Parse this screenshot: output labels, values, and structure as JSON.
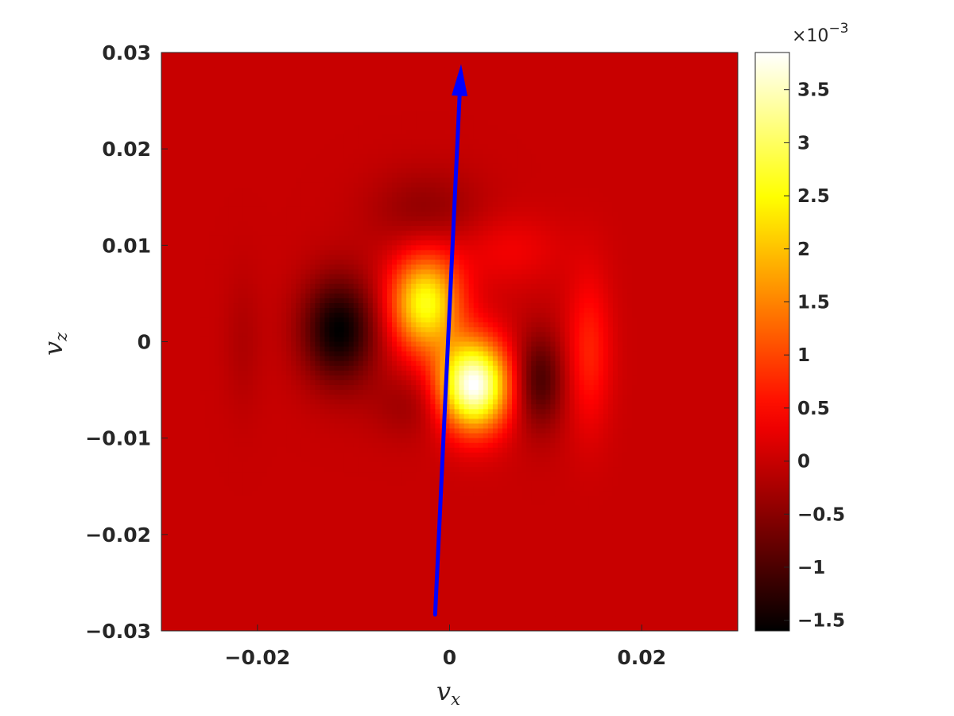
{
  "chart_data": {
    "type": "heatmap",
    "title": "",
    "xlabel": {
      "base": "v",
      "sub": "x"
    },
    "ylabel": {
      "base": "v",
      "sub": "z"
    },
    "xlim": [
      -0.03,
      0.03
    ],
    "ylim": [
      -0.03,
      0.03
    ],
    "x_ticks": [
      {
        "value": -0.02,
        "label": "−0.02"
      },
      {
        "value": 0,
        "label": "0"
      },
      {
        "value": 0.02,
        "label": "0.02"
      }
    ],
    "y_ticks": [
      {
        "value": 0.03,
        "label": "0.03"
      },
      {
        "value": 0.02,
        "label": "0.02"
      },
      {
        "value": 0.01,
        "label": "0.01"
      },
      {
        "value": 0,
        "label": "0"
      },
      {
        "value": -0.01,
        "label": "−0.01"
      },
      {
        "value": -0.02,
        "label": "−0.02"
      },
      {
        "value": -0.03,
        "label": "−0.03"
      }
    ],
    "colormap": "hot",
    "colorbar": {
      "clim": [
        -0.0016,
        0.00385
      ],
      "exponent_label": {
        "base": "×10",
        "power": "−3"
      },
      "ticks": [
        {
          "value": 0.0035,
          "label": "3.5"
        },
        {
          "value": 0.003,
          "label": "3"
        },
        {
          "value": 0.0025,
          "label": "2.5"
        },
        {
          "value": 0.002,
          "label": "2"
        },
        {
          "value": 0.0015,
          "label": "1.5"
        },
        {
          "value": 0.001,
          "label": "1"
        },
        {
          "value": 0.0005,
          "label": "0.5"
        },
        {
          "value": 0,
          "label": "0"
        },
        {
          "value": -0.0005,
          "label": "−0.5"
        },
        {
          "value": -0.001,
          "label": "−1"
        },
        {
          "value": -0.0015,
          "label": "−1.5"
        }
      ]
    },
    "background_value": 0,
    "features": [
      {
        "name": "negative-lobe-left",
        "x": -0.0115,
        "z": 0.0012,
        "sx": 0.0027,
        "sz": 0.0038,
        "amp": -0.0016
      },
      {
        "name": "negative-lobe-right",
        "x": 0.0093,
        "z": -0.004,
        "sx": 0.0018,
        "sz": 0.0035,
        "amp": -0.00105
      },
      {
        "name": "positive-lobe-center",
        "x": 0.0025,
        "z": -0.0045,
        "sx": 0.0025,
        "sz": 0.0032,
        "amp": 0.0039
      },
      {
        "name": "positive-lobe-upper",
        "x": -0.0025,
        "z": 0.004,
        "sx": 0.0025,
        "sz": 0.0035,
        "amp": 0.0026
      },
      {
        "name": "positive-ridge-right",
        "x": 0.0145,
        "z": -0.001,
        "sx": 0.0016,
        "sz": 0.0055,
        "amp": 0.0007
      },
      {
        "name": "negative-shadow-top",
        "x": -0.0025,
        "z": 0.0135,
        "sx": 0.004,
        "sz": 0.003,
        "amp": -0.00045
      },
      {
        "name": "negative-shadow-low",
        "x": -0.004,
        "z": -0.0065,
        "sx": 0.003,
        "sz": 0.0025,
        "amp": -0.00035
      },
      {
        "name": "positive-arc-right",
        "x": 0.006,
        "z": 0.0095,
        "sx": 0.004,
        "sz": 0.0025,
        "amp": 0.00035
      },
      {
        "name": "negative-ring-left",
        "x": -0.0215,
        "z": 0.0,
        "sx": 0.0014,
        "sz": 0.005,
        "amp": -0.0002
      }
    ],
    "arrow": {
      "start": [
        -0.0015,
        -0.0283
      ],
      "end": [
        0.0012,
        0.0288
      ],
      "color": "#0000ff"
    }
  }
}
